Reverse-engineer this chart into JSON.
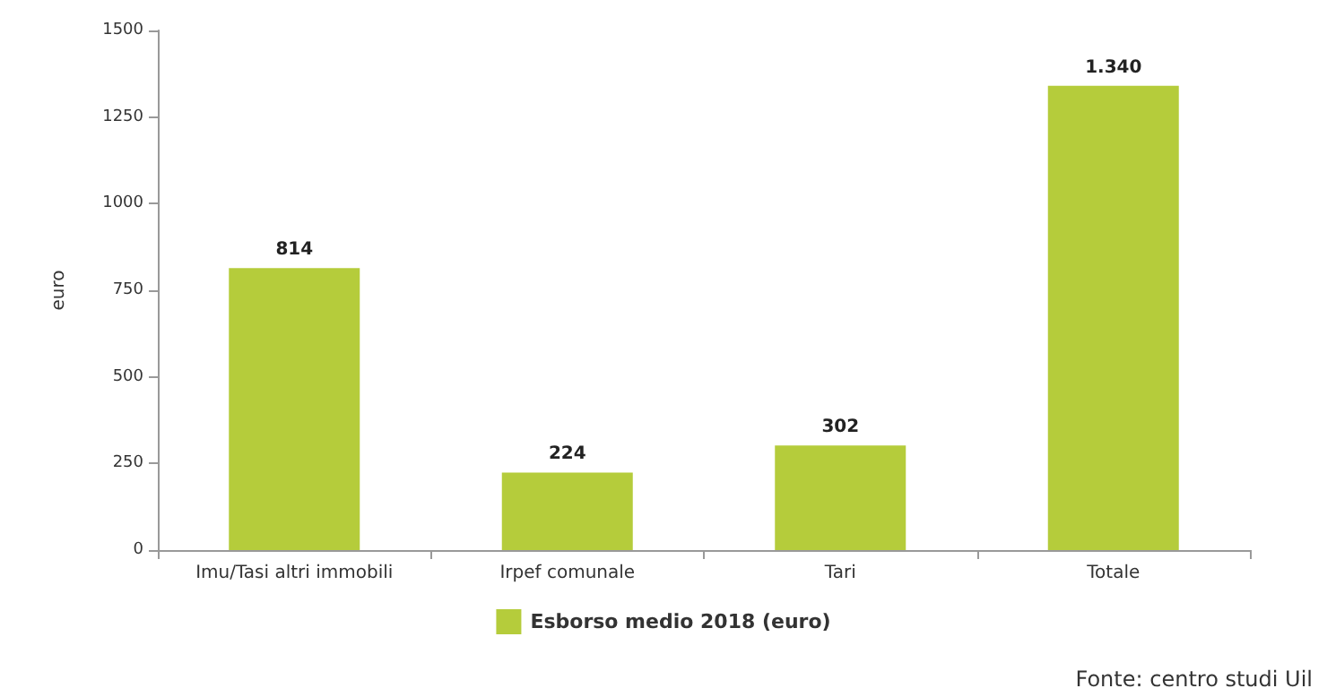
{
  "chart_data": {
    "type": "bar",
    "ylabel": "euro",
    "categories": [
      "Imu/Tasi altri immobili",
      "Irpef comunale",
      "Tari",
      "Totale"
    ],
    "series": [
      {
        "name": "Esborso medio 2018 (euro)",
        "color": "#b5cc3b",
        "values": [
          814,
          224,
          302,
          1340
        ],
        "value_labels": [
          "814",
          "224",
          "302",
          "1.340"
        ]
      }
    ],
    "ylim": [
      0,
      1500
    ],
    "yticks": [
      0,
      250,
      500,
      750,
      1000,
      1250,
      1500
    ],
    "grid": false,
    "legend": "bottom",
    "annotations": [
      "Fonte: centro studi Uil"
    ]
  }
}
